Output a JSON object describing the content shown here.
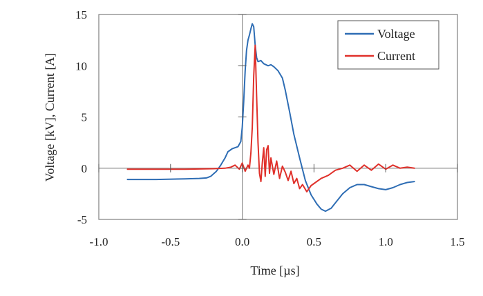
{
  "chart_data": {
    "type": "line",
    "xlabel": "Time [µs]",
    "ylabel": "Voltage [kV], Current [A]",
    "xlim": [
      -1.0,
      1.5
    ],
    "ylim": [
      -5,
      15
    ],
    "xticks": [
      -1.0,
      -0.5,
      0.0,
      0.5,
      1.0,
      1.5
    ],
    "yticks": [
      -5,
      0,
      5,
      10,
      15
    ],
    "xtick_labels": [
      "-1.0",
      "-0.5",
      "0.0",
      "0.5",
      "1.0",
      "1.5"
    ],
    "ytick_labels": [
      "-5",
      "0",
      "5",
      "10",
      "15"
    ],
    "grid": false,
    "zero_lines": true,
    "legend": "top-right",
    "series": [
      {
        "name": "Voltage",
        "color": "#2e6db4",
        "x": [
          -0.8,
          -0.6,
          -0.4,
          -0.3,
          -0.25,
          -0.22,
          -0.18,
          -0.15,
          -0.12,
          -0.1,
          -0.07,
          -0.05,
          -0.03,
          -0.01,
          0.0,
          0.01,
          0.02,
          0.03,
          0.04,
          0.05,
          0.06,
          0.07,
          0.08,
          0.09,
          0.1,
          0.11,
          0.13,
          0.15,
          0.18,
          0.2,
          0.22,
          0.25,
          0.28,
          0.3,
          0.33,
          0.36,
          0.4,
          0.44,
          0.48,
          0.52,
          0.55,
          0.58,
          0.62,
          0.66,
          0.7,
          0.75,
          0.8,
          0.85,
          0.9,
          0.95,
          1.0,
          1.05,
          1.1,
          1.15,
          1.2
        ],
        "y": [
          -1.1,
          -1.1,
          -1.05,
          -1.0,
          -0.95,
          -0.8,
          -0.3,
          0.3,
          1.0,
          1.6,
          1.9,
          2.0,
          2.1,
          2.6,
          4.0,
          6.5,
          9.5,
          11.5,
          12.5,
          13.0,
          13.6,
          14.1,
          13.8,
          12.0,
          10.8,
          10.4,
          10.5,
          10.2,
          10.0,
          10.1,
          9.9,
          9.5,
          8.8,
          7.6,
          5.5,
          3.3,
          1.0,
          -1.2,
          -2.6,
          -3.5,
          -4.0,
          -4.2,
          -3.9,
          -3.2,
          -2.5,
          -1.9,
          -1.6,
          -1.6,
          -1.8,
          -2.0,
          -2.1,
          -1.9,
          -1.6,
          -1.4,
          -1.3
        ]
      },
      {
        "name": "Current",
        "color": "#e0302a",
        "x": [
          -0.8,
          -0.6,
          -0.4,
          -0.2,
          -0.12,
          -0.08,
          -0.05,
          -0.02,
          0.0,
          0.02,
          0.04,
          0.05,
          0.06,
          0.07,
          0.08,
          0.09,
          0.1,
          0.11,
          0.12,
          0.13,
          0.14,
          0.15,
          0.16,
          0.17,
          0.18,
          0.19,
          0.2,
          0.22,
          0.24,
          0.26,
          0.28,
          0.3,
          0.32,
          0.34,
          0.36,
          0.38,
          0.4,
          0.42,
          0.45,
          0.48,
          0.5,
          0.55,
          0.6,
          0.65,
          0.7,
          0.75,
          0.8,
          0.85,
          0.9,
          0.95,
          1.0,
          1.05,
          1.1,
          1.15,
          1.2
        ],
        "y": [
          -0.1,
          -0.1,
          -0.1,
          -0.05,
          0.0,
          0.1,
          0.3,
          -0.1,
          0.5,
          -0.3,
          0.3,
          0.0,
          1.5,
          4.0,
          9.0,
          12.0,
          7.0,
          2.5,
          -0.5,
          -1.3,
          0.6,
          2.0,
          -0.8,
          1.8,
          2.2,
          -0.5,
          1.0,
          -0.6,
          0.7,
          -1.0,
          0.2,
          -0.4,
          -1.2,
          -0.3,
          -1.5,
          -1.0,
          -2.0,
          -1.6,
          -2.3,
          -1.7,
          -1.5,
          -1.0,
          -0.7,
          -0.2,
          0.0,
          0.3,
          -0.3,
          0.3,
          -0.2,
          0.4,
          -0.1,
          0.3,
          0.0,
          0.1,
          0.0
        ]
      }
    ]
  }
}
